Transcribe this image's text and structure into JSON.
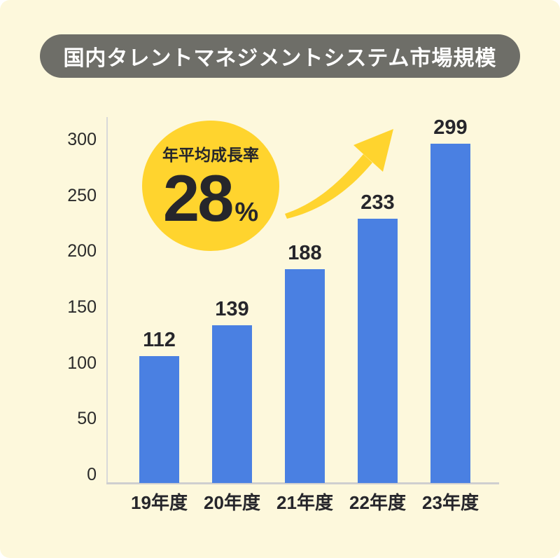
{
  "page": {
    "background": "#FFFFFF",
    "card_background": "#FDF8DC"
  },
  "header": {
    "title": "国内タレントマネジメントシステム市場規模",
    "background": "#6E6E68",
    "text_color": "#FFFFFF"
  },
  "badge": {
    "label": "年平均成長率",
    "value": "28",
    "unit": "%",
    "background": "#FFD42E",
    "text_color": "#26262B"
  },
  "arrow": {
    "name": "growth-arrow",
    "color": "#FFD42E"
  },
  "chart_data": {
    "type": "bar",
    "title": "国内タレントマネジメントシステム市場規模",
    "categories": [
      "19年度",
      "20年度",
      "21年度",
      "22年度",
      "23年度"
    ],
    "values": [
      112,
      139,
      188,
      233,
      299
    ],
    "bar_color": "#4A80E2",
    "value_label_color": "#26262B",
    "tick_label_color": "#2B2B2B",
    "axis_color": "#D9D9D9",
    "xlabel": "",
    "ylabel": "",
    "ylim": [
      0,
      300
    ],
    "yticks": [
      0,
      50,
      100,
      150,
      200,
      250,
      300
    ],
    "grid": false,
    "legend": false,
    "annotation": {
      "label": "年平均成長率",
      "value": "28%"
    }
  }
}
